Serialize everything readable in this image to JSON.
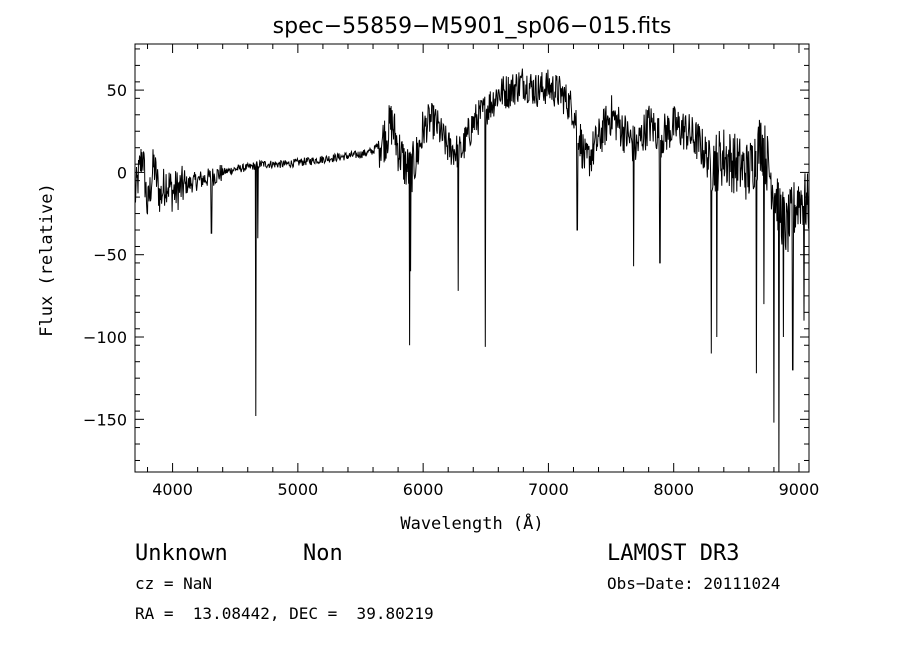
{
  "chart_data": {
    "type": "line",
    "title": "spec−55859−M5901_sp06−015.fits",
    "xlabel": "Wavelength (Å)",
    "ylabel": "Flux (relative)",
    "xlim": [
      3700,
      9080
    ],
    "ylim": [
      -182,
      78
    ],
    "x_ticks": [
      4000,
      5000,
      6000,
      7000,
      8000,
      9000
    ],
    "x_tick_labels": [
      "4000",
      "5000",
      "6000",
      "7000",
      "8000",
      "9000"
    ],
    "y_ticks": [
      50,
      0,
      -50,
      -100,
      -150
    ],
    "y_tick_labels": [
      "50",
      "0",
      "−50",
      "−100",
      "−150"
    ],
    "grid": false,
    "series": [
      {
        "values_profile": [
          [
            3700,
            -15
          ],
          [
            3760,
            12
          ],
          [
            3800,
            -22
          ],
          [
            3850,
            5
          ],
          [
            3900,
            -15
          ],
          [
            3950,
            -5
          ],
          [
            4000,
            -12
          ],
          [
            4100,
            -8
          ],
          [
            4200,
            -5
          ],
          [
            4300,
            -3
          ],
          [
            4400,
            0
          ],
          [
            4500,
            2
          ],
          [
            4600,
            3
          ],
          [
            4700,
            5
          ],
          [
            4800,
            5
          ],
          [
            4900,
            5
          ],
          [
            5000,
            6
          ],
          [
            5100,
            7
          ],
          [
            5200,
            8
          ],
          [
            5300,
            9
          ],
          [
            5400,
            10
          ],
          [
            5500,
            11
          ],
          [
            5600,
            13
          ],
          [
            5700,
            22
          ],
          [
            5750,
            30
          ],
          [
            5800,
            15
          ],
          [
            5850,
            5
          ],
          [
            5900,
            0
          ],
          [
            5950,
            10
          ],
          [
            6000,
            25
          ],
          [
            6050,
            32
          ],
          [
            6100,
            30
          ],
          [
            6150,
            22
          ],
          [
            6200,
            15
          ],
          [
            6300,
            12
          ],
          [
            6400,
            30
          ],
          [
            6500,
            38
          ],
          [
            6600,
            48
          ],
          [
            6700,
            50
          ],
          [
            6800,
            55
          ],
          [
            6900,
            50
          ],
          [
            7000,
            52
          ],
          [
            7100,
            48
          ],
          [
            7200,
            38
          ],
          [
            7300,
            5
          ],
          [
            7400,
            20
          ],
          [
            7500,
            35
          ],
          [
            7600,
            25
          ],
          [
            7700,
            15
          ],
          [
            7800,
            30
          ],
          [
            7900,
            22
          ],
          [
            8000,
            28
          ],
          [
            8100,
            25
          ],
          [
            8200,
            18
          ],
          [
            8300,
            5
          ],
          [
            8400,
            10
          ],
          [
            8500,
            5
          ],
          [
            8600,
            0
          ],
          [
            8700,
            20
          ],
          [
            8800,
            -10
          ],
          [
            8900,
            -35
          ],
          [
            8950,
            -25
          ],
          [
            9000,
            -15
          ],
          [
            9080,
            -20
          ]
        ],
        "absorption_lines": [
          [
            4310,
            -37
          ],
          [
            4665,
            -148
          ],
          [
            4680,
            -40
          ],
          [
            5892,
            -105
          ],
          [
            5900,
            -60
          ],
          [
            6280,
            -72
          ],
          [
            6495,
            -106
          ],
          [
            7230,
            -35
          ],
          [
            7680,
            -57
          ],
          [
            7890,
            -55
          ],
          [
            8300,
            -110
          ],
          [
            8345,
            -100
          ],
          [
            8660,
            -122
          ],
          [
            8720,
            -80
          ],
          [
            8800,
            -152
          ],
          [
            8840,
            -182
          ],
          [
            8875,
            -100
          ],
          [
            8950,
            -120
          ],
          [
            9040,
            -90
          ]
        ]
      }
    ]
  },
  "annotations": {
    "object_class": "Unknown",
    "subclass": "Non",
    "survey": "LAMOST DR3",
    "cz": "cz = NaN",
    "obs_date": "Obs−Date: 20111024",
    "coords": "RA =  13.08442, DEC =  39.80219"
  }
}
